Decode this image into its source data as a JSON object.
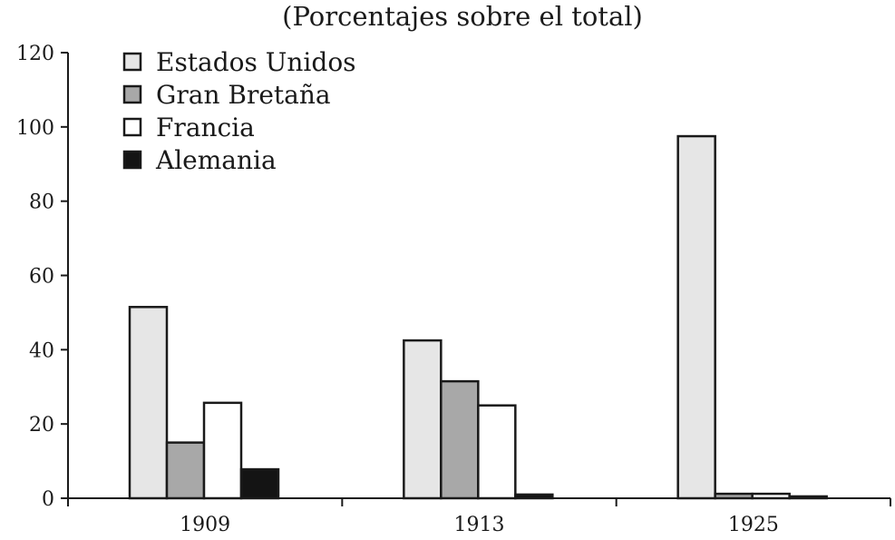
{
  "chart_data": {
    "type": "bar",
    "title": "(Porcentajes sobre el total)",
    "xlabel": "",
    "ylabel": "",
    "categories": [
      "1909",
      "1913",
      "1925"
    ],
    "ylim": [
      0,
      120
    ],
    "yticks": [
      0,
      20,
      40,
      60,
      80,
      100,
      120
    ],
    "legend_position": "top-left",
    "grid": false,
    "series": [
      {
        "name": "Estados Unidos",
        "color": "#e6e6e6",
        "values": [
          51.5,
          42.5,
          97.5
        ]
      },
      {
        "name": "Gran Bretaña",
        "color": "#a8a8a8",
        "values": [
          15,
          31.5,
          1.2
        ]
      },
      {
        "name": "Francia",
        "color": "#ffffff",
        "values": [
          25.7,
          25,
          1.2
        ]
      },
      {
        "name": "Alemania",
        "color": "#141414",
        "values": [
          7.8,
          1,
          0.5
        ]
      }
    ]
  }
}
